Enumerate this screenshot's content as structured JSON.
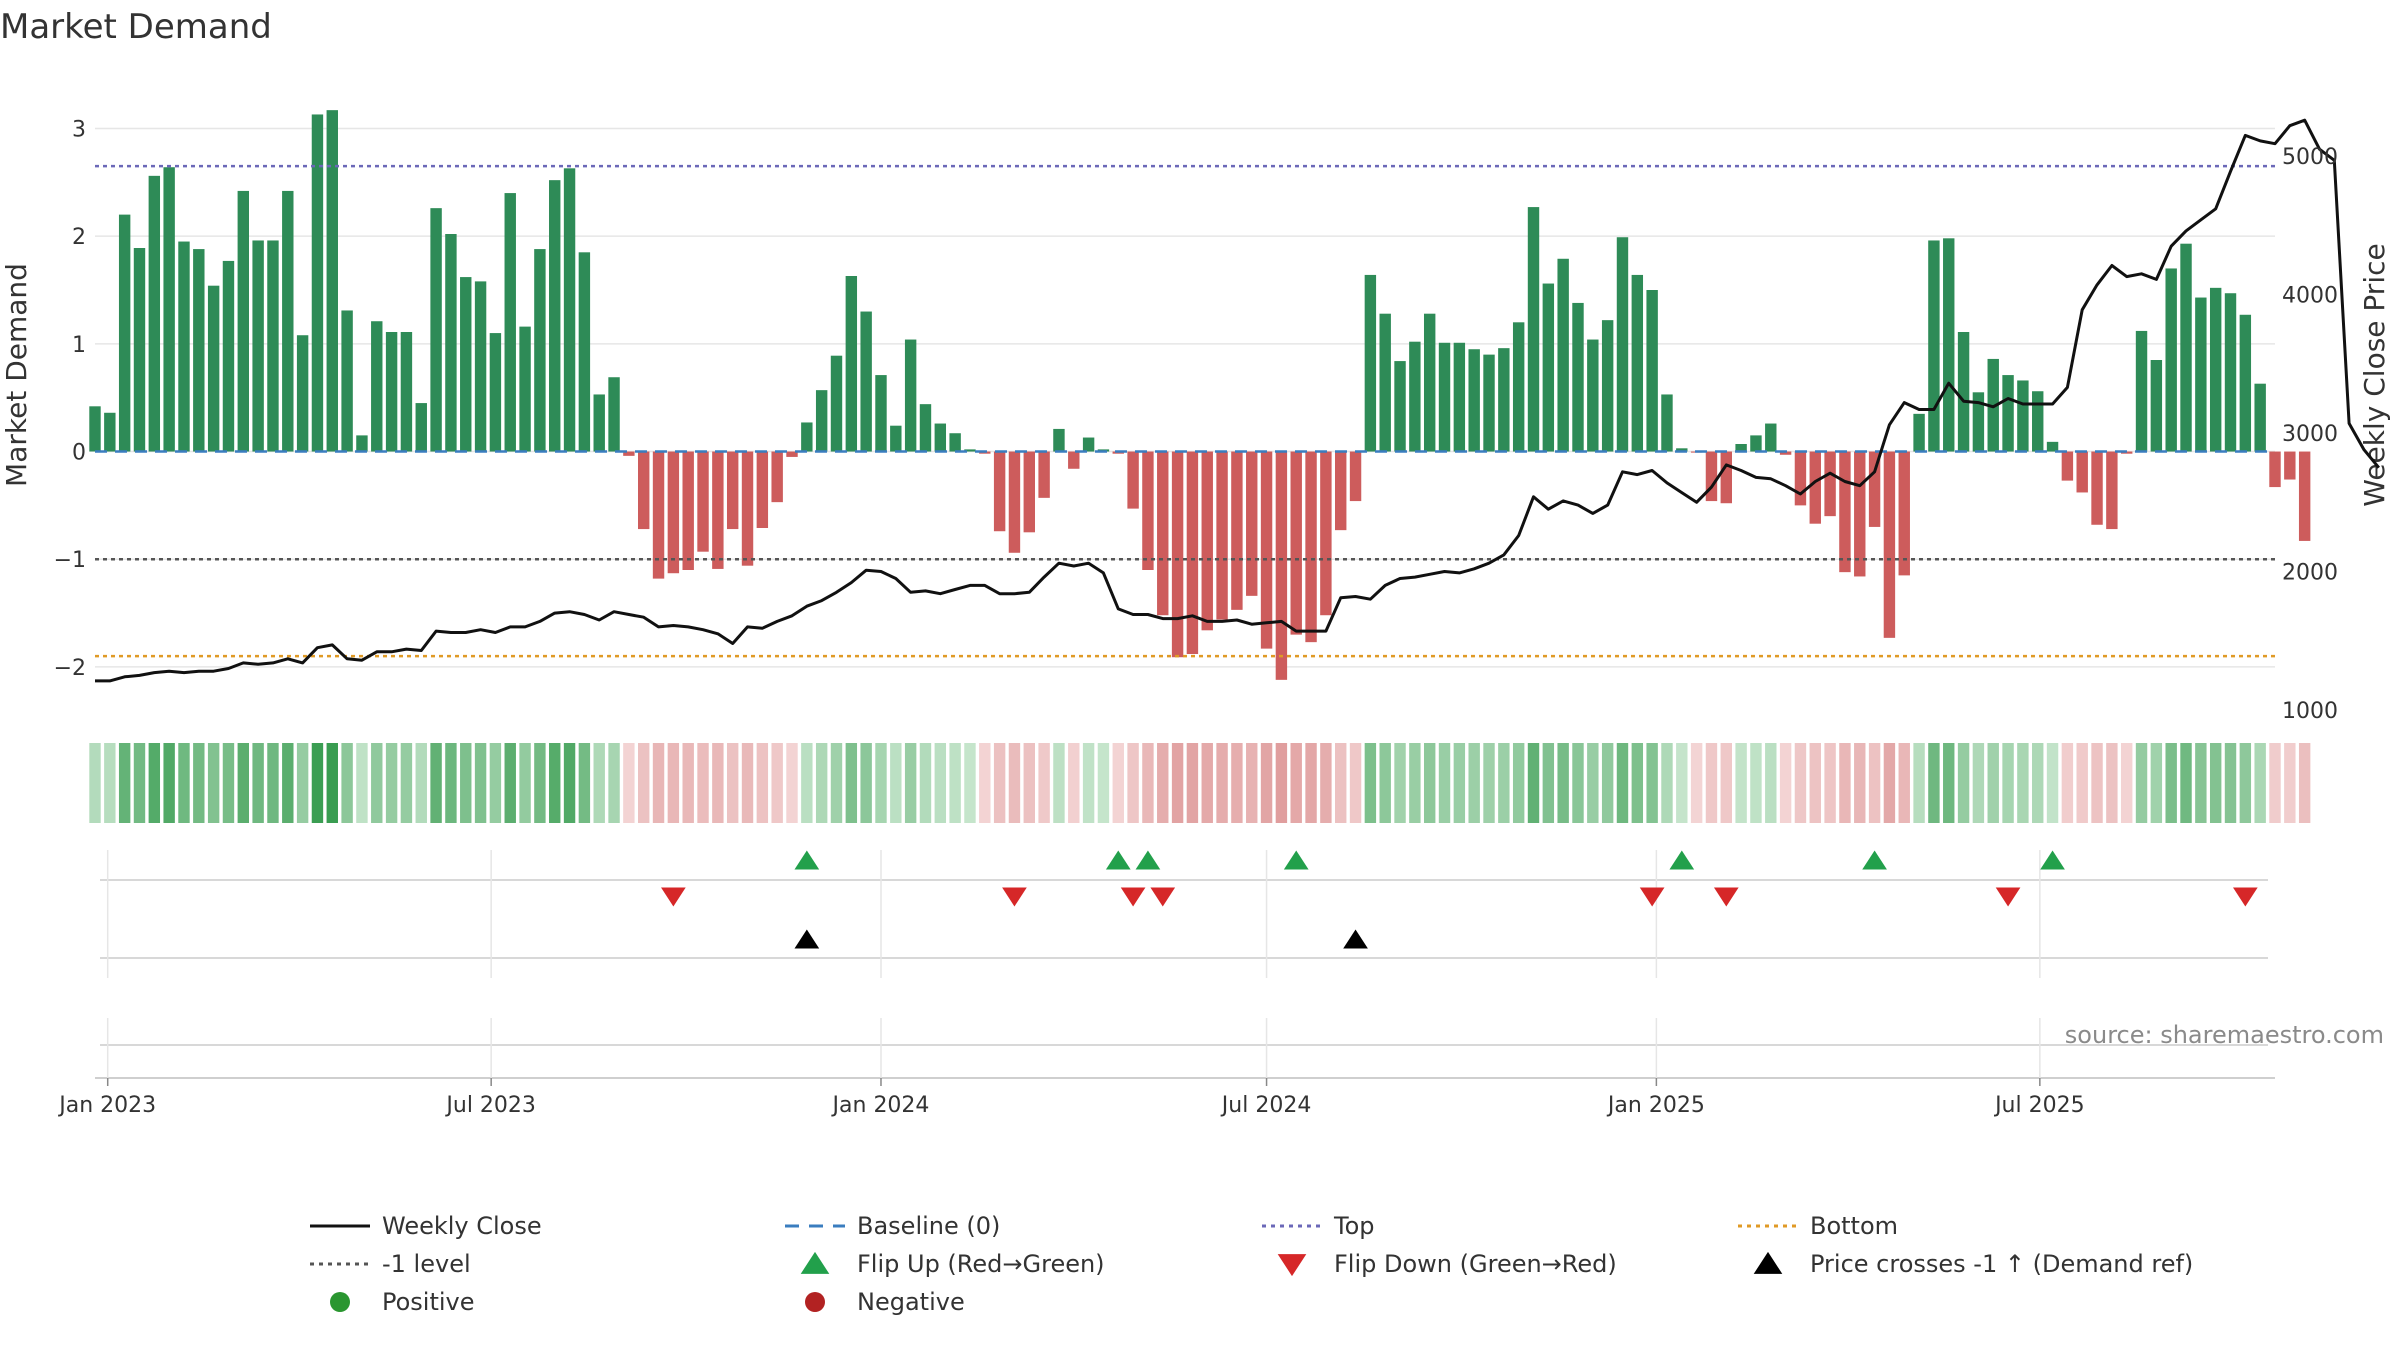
{
  "chart_data": {
    "type": "bar",
    "title": "Market Demand",
    "ylabel_left": "Market Demand",
    "ylabel_right": "Weekly Close Price",
    "source": "source: sharemaestro.com",
    "x_start": "2022-12-26",
    "x_end": "2025-10-20",
    "x_ticks": [
      {
        "date": "2023-01-01",
        "label": "Jan 2023"
      },
      {
        "date": "2023-07-01",
        "label": "Jul 2023"
      },
      {
        "date": "2024-01-01",
        "label": "Jan 2024"
      },
      {
        "date": "2024-07-01",
        "label": "Jul 2024"
      },
      {
        "date": "2025-01-01",
        "label": "Jan 2025"
      },
      {
        "date": "2025-07-01",
        "label": "Jul 2025"
      }
    ],
    "left_axis": {
      "ylim": [
        -2.4,
        3.45
      ],
      "ticks": [
        -2,
        -1,
        0,
        1,
        2,
        3
      ]
    },
    "right_axis": {
      "ylim": [
        1000,
        5550
      ],
      "ticks": [
        1000,
        2000,
        3000,
        4000,
        5000
      ]
    },
    "levels": {
      "top": 2.65,
      "minus_one": -1,
      "bottom": -1.9,
      "baseline": 0
    },
    "demand": [
      0.42,
      0.36,
      2.2,
      1.89,
      2.56,
      2.64,
      1.95,
      1.88,
      1.54,
      1.77,
      2.42,
      1.96,
      1.96,
      2.42,
      1.08,
      3.13,
      3.17,
      1.31,
      0.15,
      1.21,
      1.11,
      1.11,
      0.45,
      2.26,
      2.02,
      1.62,
      1.58,
      1.1,
      2.4,
      1.16,
      1.88,
      2.52,
      2.63,
      1.85,
      0.53,
      0.69,
      -0.04,
      -0.72,
      -1.18,
      -1.13,
      -1.1,
      -0.93,
      -1.09,
      -0.72,
      -1.06,
      -0.71,
      -0.47,
      -0.05,
      0.27,
      0.57,
      0.89,
      1.63,
      1.3,
      0.71,
      0.24,
      1.04,
      0.44,
      0.26,
      0.17,
      0.02,
      -0.02,
      -0.74,
      -0.94,
      -0.75,
      -0.43,
      0.21,
      -0.16,
      0.13,
      0.02,
      -0.02,
      -0.53,
      -1.1,
      -1.52,
      -1.91,
      -1.88,
      -1.66,
      -1.56,
      -1.47,
      -1.34,
      -1.83,
      -2.12,
      -1.7,
      -1.77,
      -1.52,
      -0.73,
      -0.46,
      1.64,
      1.28,
      0.84,
      1.02,
      1.28,
      1.01,
      1.01,
      0.95,
      0.9,
      0.96,
      1.2,
      2.27,
      1.56,
      1.79,
      1.38,
      1.04,
      1.22,
      1.99,
      1.64,
      1.5,
      0.53,
      0.03,
      -0.01,
      -0.46,
      -0.48,
      0.07,
      0.15,
      0.26,
      -0.03,
      -0.5,
      -0.67,
      -0.6,
      -1.12,
      -1.16,
      -0.7,
      -1.73,
      -1.15,
      0.35,
      1.96,
      1.98,
      1.11,
      0.55,
      0.86,
      0.71,
      0.66,
      0.56,
      0.09,
      -0.27,
      -0.38,
      -0.68,
      -0.72,
      -0.02,
      1.12,
      0.85,
      1.7,
      1.93,
      1.43,
      1.52,
      1.47,
      1.27,
      0.63,
      -0.33,
      -0.26,
      -0.83
    ],
    "weekly_close": [
      1210,
      1210,
      1240,
      1250,
      1270,
      1280,
      1270,
      1280,
      1280,
      1300,
      1340,
      1330,
      1340,
      1370,
      1340,
      1450,
      1470,
      1370,
      1360,
      1420,
      1420,
      1440,
      1430,
      1570,
      1560,
      1560,
      1580,
      1560,
      1600,
      1600,
      1640,
      1700,
      1710,
      1690,
      1650,
      1710,
      1690,
      1670,
      1600,
      1610,
      1600,
      1580,
      1550,
      1480,
      1600,
      1590,
      1640,
      1680,
      1750,
      1790,
      1850,
      1920,
      2010,
      2000,
      1950,
      1850,
      1860,
      1840,
      1870,
      1900,
      1900,
      1840,
      1840,
      1850,
      1960,
      2060,
      2040,
      2060,
      1990,
      1730,
      1690,
      1690,
      1660,
      1660,
      1680,
      1640,
      1640,
      1650,
      1620,
      1630,
      1640,
      1570,
      1570,
      1570,
      1810,
      1820,
      1800,
      1900,
      1950,
      1960,
      1980,
      2000,
      1990,
      2020,
      2060,
      2120,
      2260,
      2540,
      2450,
      2510,
      2480,
      2420,
      2480,
      2720,
      2700,
      2730,
      2640,
      2570,
      2500,
      2610,
      2770,
      2730,
      2680,
      2670,
      2620,
      2560,
      2650,
      2710,
      2650,
      2620,
      2720,
      3060,
      3220,
      3170,
      3170,
      3360,
      3230,
      3220,
      3190,
      3250,
      3210,
      3210,
      3210,
      3330,
      3890,
      4070,
      4210,
      4130,
      4150,
      4110,
      4350,
      4460,
      4540,
      4620,
      4890,
      5150,
      5110,
      5090,
      5220,
      5260,
      5050,
      4970,
      3070,
      2880,
      2750
    ]
  },
  "flip_up": [
    "2023-11-27",
    "2024-04-22",
    "2024-05-06",
    "2024-07-15",
    "2025-01-13",
    "2025-04-14",
    "2025-07-07"
  ],
  "flip_down": [
    "2023-09-25",
    "2024-03-04",
    "2024-04-29",
    "2024-05-13",
    "2024-12-30",
    "2025-02-03",
    "2025-06-16",
    "2025-10-06"
  ],
  "price_cross": [
    "2023-11-27",
    "2024-08-12"
  ],
  "colors": {
    "positive_bar": "#2e8b57",
    "negative_bar": "#cd5c5c",
    "price_line": "#111111",
    "top_line": "#6b68b8",
    "minus_one_line": "#555555",
    "bottom_line": "#e09a25",
    "baseline": "#3a7dbf",
    "flip_up": "#22a04b",
    "flip_down": "#d62728",
    "cross": "#000000",
    "positive_dot": "#2a9630",
    "negative_dot": "#b22222",
    "grid": "#e6e6e6",
    "strip_pos": [
      198,
      229,
      204
    ],
    "strip_pos_dark": [
      56,
      156,
      80
    ],
    "strip_neg": [
      243,
      212,
      212
    ],
    "strip_neg_dark": [
      214,
      130,
      130
    ]
  },
  "legend": [
    {
      "key": "weekly_close",
      "label": "Weekly Close",
      "kind": "line",
      "color": "#111111"
    },
    {
      "key": "baseline",
      "label": "Baseline (0)",
      "kind": "dash",
      "color": "#3a7dbf"
    },
    {
      "key": "top",
      "label": "Top",
      "kind": "dot",
      "color": "#6b68b8"
    },
    {
      "key": "bottom",
      "label": "Bottom",
      "kind": "dot",
      "color": "#e09a25"
    },
    {
      "key": "minus_one",
      "label": "-1 level",
      "kind": "dot",
      "color": "#555555"
    },
    {
      "key": "flip_up",
      "label": "Flip Up (Red→Green)",
      "kind": "tri-up",
      "color": "#22a04b"
    },
    {
      "key": "flip_down",
      "label": "Flip Down (Green→Red)",
      "kind": "tri-down",
      "color": "#d62728"
    },
    {
      "key": "price_cross",
      "label": "Price crosses -1 ↑ (Demand ref)",
      "kind": "tri-up",
      "color": "#000000"
    },
    {
      "key": "positive",
      "label": "Positive",
      "kind": "circle",
      "color": "#2a9630"
    },
    {
      "key": "negative",
      "label": "Negative",
      "kind": "circle",
      "color": "#b22222"
    }
  ]
}
